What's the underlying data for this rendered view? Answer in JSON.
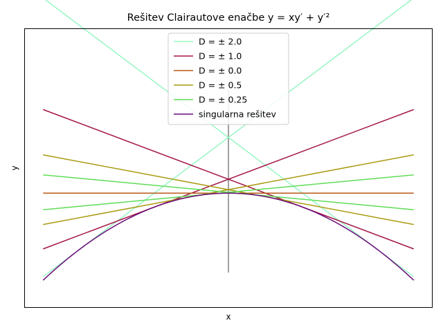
{
  "chart_data": {
    "type": "line",
    "title": "Rešitev Clairautove enačbe y = xy′ + y′²",
    "xlabel": "x",
    "ylabel": "y",
    "xlim": [
      -5.5,
      5.5
    ],
    "ylim": [
      -8.2,
      11.8
    ],
    "grid": false,
    "legend_position": "top-center",
    "x": [
      -5,
      5
    ],
    "series": [
      {
        "name": "D = ± 2.0",
        "color": "#98f5c4",
        "lines": [
          {
            "slope": 2.0,
            "intercept": 4.0
          },
          {
            "slope": -2.0,
            "intercept": 4.0
          }
        ]
      },
      {
        "name": "D = ± 1.0",
        "color": "#a31547",
        "lines": [
          {
            "slope": 1.0,
            "intercept": 1.0
          },
          {
            "slope": -1.0,
            "intercept": 1.0
          }
        ]
      },
      {
        "name": "D = ± 0.0",
        "color": "#b85716",
        "lines": [
          {
            "slope": 0.0,
            "intercept": 0.0
          }
        ]
      },
      {
        "name": "D = ± 0.5",
        "color": "#a99a10",
        "lines": [
          {
            "slope": 0.5,
            "intercept": 0.25
          },
          {
            "slope": -0.5,
            "intercept": 0.25
          }
        ]
      },
      {
        "name": "D = ± 0.25",
        "color": "#5fdc54",
        "lines": [
          {
            "slope": 0.25,
            "intercept": 0.0625
          },
          {
            "slope": -0.25,
            "intercept": 0.0625
          }
        ]
      },
      {
        "name": "singularna rešitev",
        "color": "#6a0a7a",
        "curve": "y = -x^2/4"
      }
    ],
    "vertical_line": {
      "x": 0,
      "y_range": [
        -5.7,
        7.4
      ],
      "color": "#808080"
    }
  }
}
